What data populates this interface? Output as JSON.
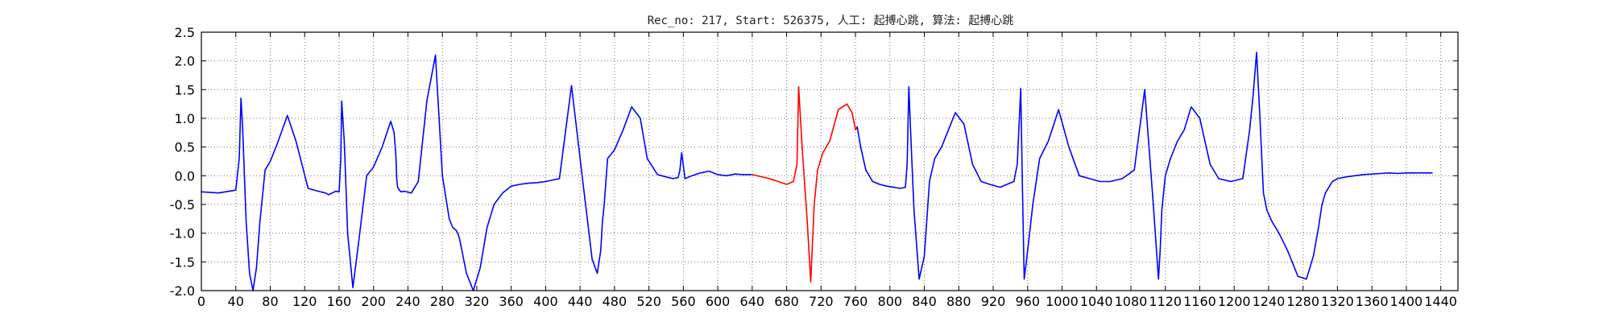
{
  "chart_data": {
    "type": "line",
    "title": "Rec_no: 217, Start: 526375, 人工: 起搏心跳, 算法: 起搏心跳",
    "xlabel": "",
    "ylabel": "",
    "xlim": [
      0,
      1460
    ],
    "ylim": [
      -2.0,
      2.5
    ],
    "grid": true,
    "yticks": [
      -2.0,
      -1.5,
      -1.0,
      -0.5,
      0.0,
      0.5,
      1.0,
      1.5,
      2.0,
      2.5
    ],
    "xticks": [
      0,
      40,
      80,
      120,
      160,
      200,
      240,
      280,
      320,
      360,
      400,
      440,
      480,
      520,
      560,
      600,
      640,
      680,
      720,
      760,
      800,
      840,
      880,
      920,
      960,
      1000,
      1040,
      1080,
      1120,
      1160,
      1200,
      1240,
      1280,
      1320,
      1360,
      1400,
      1440
    ],
    "colors": {
      "normal": "#0000ff",
      "highlight": "#ff0000"
    },
    "series": [
      {
        "color": "#0000ff",
        "x": [
          0,
          20,
          40,
          44,
          46,
          48,
          52,
          56,
          60,
          64,
          68,
          74,
          80,
          88,
          100,
          110,
          124,
          136,
          144,
          148,
          152,
          156,
          160,
          162,
          163,
          166,
          170,
          176,
          184,
          192,
          200,
          210,
          220,
          224,
          226,
          227,
          228,
          230,
          232,
          236,
          244,
          252,
          262,
          272,
          280,
          288,
          292,
          296,
          298,
          300,
          302,
          308,
          316,
          324,
          332,
          340,
          350,
          360,
          370,
          380,
          390,
          400,
          416,
          430,
          444,
          454,
          460,
          464,
          466,
          468,
          472,
          480,
          490,
          500,
          510,
          518,
          530,
          540,
          548,
          554,
          556,
          558,
          562,
          570,
          580,
          590,
          600,
          610,
          620,
          630,
          640
        ],
        "y": [
          -0.28,
          -0.3,
          -0.25,
          0.3,
          1.35,
          0.8,
          -0.8,
          -1.7,
          -2.0,
          -1.6,
          -0.8,
          0.1,
          0.25,
          0.55,
          1.05,
          0.6,
          -0.22,
          -0.27,
          -0.3,
          -0.33,
          -0.3,
          -0.27,
          -0.28,
          0.3,
          1.3,
          0.6,
          -1.0,
          -1.95,
          -1.0,
          0.0,
          0.15,
          0.5,
          0.95,
          0.75,
          0.35,
          -0.05,
          -0.2,
          -0.25,
          -0.28,
          -0.27,
          -0.3,
          -0.1,
          1.3,
          2.1,
          0.0,
          -0.75,
          -0.9,
          -0.95,
          -1.0,
          -1.1,
          -1.25,
          -1.7,
          -2.0,
          -1.6,
          -0.9,
          -0.5,
          -0.3,
          -0.18,
          -0.15,
          -0.13,
          -0.12,
          -0.1,
          -0.05,
          1.57,
          -0.2,
          -1.45,
          -1.7,
          -1.3,
          -0.8,
          -0.5,
          0.3,
          0.45,
          0.8,
          1.2,
          1.0,
          0.3,
          0.02,
          -0.02,
          -0.05,
          -0.03,
          0.1,
          0.4,
          -0.05,
          0.0,
          0.05,
          0.08,
          0.02,
          0.0,
          0.03,
          0.02,
          0.02
        ]
      },
      {
        "color": "#ff0000",
        "x": [
          640,
          660,
          680,
          688,
          692,
          694,
          698,
          704,
          708,
          712,
          716,
          722,
          730,
          740,
          750,
          756,
          760,
          762
        ],
        "y": [
          0.02,
          -0.05,
          -0.15,
          -0.1,
          0.2,
          1.55,
          0.5,
          -0.8,
          -1.85,
          -0.5,
          0.1,
          0.4,
          0.6,
          1.15,
          1.25,
          1.1,
          0.8,
          0.85
        ]
      },
      {
        "color": "#0000ff",
        "x": [
          762,
          766,
          772,
          780,
          788,
          796,
          804,
          812,
          818,
          820,
          822,
          824,
          828,
          834,
          840,
          846,
          852,
          860,
          868,
          876,
          886,
          896,
          906,
          916,
          928,
          936,
          944,
          948,
          952,
          954,
          956,
          960,
          966,
          974,
          984,
          996,
          1008,
          1020,
          1032,
          1044,
          1056,
          1070,
          1084,
          1096,
          1106,
          1112,
          1114,
          1116,
          1120,
          1126,
          1134,
          1142,
          1150,
          1160,
          1172,
          1182,
          1196,
          1210,
          1218,
          1222,
          1226,
          1230,
          1234,
          1238,
          1244,
          1252,
          1262,
          1274,
          1284,
          1292,
          1298,
          1302,
          1306,
          1310,
          1314,
          1320,
          1330,
          1340,
          1350,
          1360,
          1370,
          1380,
          1390,
          1400,
          1410,
          1420,
          1430
        ],
        "y": [
          0.85,
          0.5,
          0.1,
          -0.1,
          -0.15,
          -0.18,
          -0.2,
          -0.22,
          -0.2,
          0.2,
          1.55,
          0.8,
          -0.6,
          -1.8,
          -1.4,
          -0.1,
          0.3,
          0.5,
          0.8,
          1.1,
          0.9,
          0.2,
          -0.1,
          -0.15,
          -0.2,
          -0.15,
          -0.1,
          0.2,
          1.52,
          -0.2,
          -1.8,
          -1.3,
          -0.5,
          0.3,
          0.6,
          1.15,
          0.5,
          0.0,
          -0.05,
          -0.1,
          -0.1,
          -0.05,
          0.1,
          1.5,
          -0.5,
          -1.8,
          -1.3,
          -0.6,
          0.0,
          0.3,
          0.6,
          0.8,
          1.2,
          1.0,
          0.2,
          -0.05,
          -0.1,
          -0.05,
          0.8,
          1.4,
          2.15,
          1.0,
          -0.3,
          -0.6,
          -0.8,
          -1.0,
          -1.3,
          -1.75,
          -1.8,
          -1.4,
          -0.9,
          -0.5,
          -0.3,
          -0.2,
          -0.1,
          -0.05,
          -0.02,
          0.0,
          0.02,
          0.03,
          0.04,
          0.05,
          0.04,
          0.05,
          0.05,
          0.05,
          0.05
        ]
      }
    ]
  }
}
